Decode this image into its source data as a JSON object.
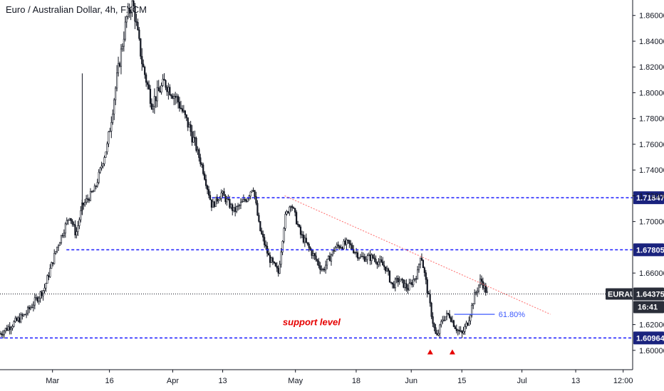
{
  "chart_data": {
    "type": "candlestick",
    "title": "Euro / Australian Dollar, 4h, FXCM",
    "symbol": "EURAUD",
    "ylim": [
      1.585,
      1.872
    ],
    "y_ticks": [
      "1.86000",
      "1.84000",
      "1.82000",
      "1.80000",
      "1.78000",
      "1.76000",
      "1.74000",
      "1.72000",
      "1.70000",
      "1.66000",
      "1.62000",
      "1.60000"
    ],
    "x_ticks": [
      "Mar",
      "16",
      "Apr",
      "13",
      "May",
      "18",
      "Jun",
      "15",
      "Jul",
      "13",
      "12:00"
    ],
    "price_path": [
      [
        0,
        1.613
      ],
      [
        0.04,
        1.628
      ],
      [
        0.07,
        1.648
      ],
      [
        0.09,
        1.68
      ],
      [
        0.11,
        1.705
      ],
      [
        0.12,
        1.69
      ],
      [
        0.13,
        1.712
      ],
      [
        0.15,
        1.725
      ],
      [
        0.17,
        1.76
      ],
      [
        0.185,
        1.812
      ],
      [
        0.2,
        1.858
      ],
      [
        0.21,
        1.87
      ],
      [
        0.225,
        1.822
      ],
      [
        0.24,
        1.792
      ],
      [
        0.26,
        1.808
      ],
      [
        0.28,
        1.795
      ],
      [
        0.3,
        1.772
      ],
      [
        0.32,
        1.742
      ],
      [
        0.335,
        1.712
      ],
      [
        0.35,
        1.722
      ],
      [
        0.37,
        1.708
      ],
      [
        0.39,
        1.718
      ],
      [
        0.4,
        1.728
      ],
      [
        0.41,
        1.695
      ],
      [
        0.425,
        1.672
      ],
      [
        0.44,
        1.66
      ],
      [
        0.45,
        1.702
      ],
      [
        0.46,
        1.715
      ],
      [
        0.475,
        1.69
      ],
      [
        0.49,
        1.678
      ],
      [
        0.51,
        1.662
      ],
      [
        0.53,
        1.68
      ],
      [
        0.55,
        1.683
      ],
      [
        0.57,
        1.672
      ],
      [
        0.59,
        1.672
      ],
      [
        0.61,
        1.664
      ],
      [
        0.62,
        1.65
      ],
      [
        0.63,
        1.655
      ],
      [
        0.645,
        1.648
      ],
      [
        0.66,
        1.66
      ],
      [
        0.665,
        1.676
      ],
      [
        0.675,
        1.648
      ],
      [
        0.685,
        1.62
      ],
      [
        0.69,
        1.609
      ],
      [
        0.7,
        1.625
      ],
      [
        0.71,
        1.628
      ],
      [
        0.72,
        1.618
      ],
      [
        0.73,
        1.612
      ],
      [
        0.74,
        1.623
      ],
      [
        0.75,
        1.642
      ],
      [
        0.76,
        1.655
      ],
      [
        0.77,
        1.644
      ]
    ],
    "levels": [
      {
        "label": "1.71847",
        "value": 1.71847
      },
      {
        "label": "1.67805",
        "value": 1.67805
      },
      {
        "label": "1.60964",
        "value": 1.60964
      }
    ],
    "current": {
      "symbol": "EURAUD",
      "price": "1.64375",
      "countdown": "16:41",
      "value": 1.64375
    },
    "fib": {
      "label": "61.80%",
      "value": 1.628
    },
    "trendline": {
      "from": [
        0.45,
        1.72
      ],
      "to": [
        0.87,
        1.628
      ]
    },
    "annotation": "support level",
    "markers": [
      0.68,
      0.715
    ],
    "colors": {
      "up": "#131722",
      "level": "#1a1aff",
      "trend": "#ff6b6b",
      "annotation": "#e60000",
      "fib": "#3d5afe"
    },
    "grid": false
  }
}
